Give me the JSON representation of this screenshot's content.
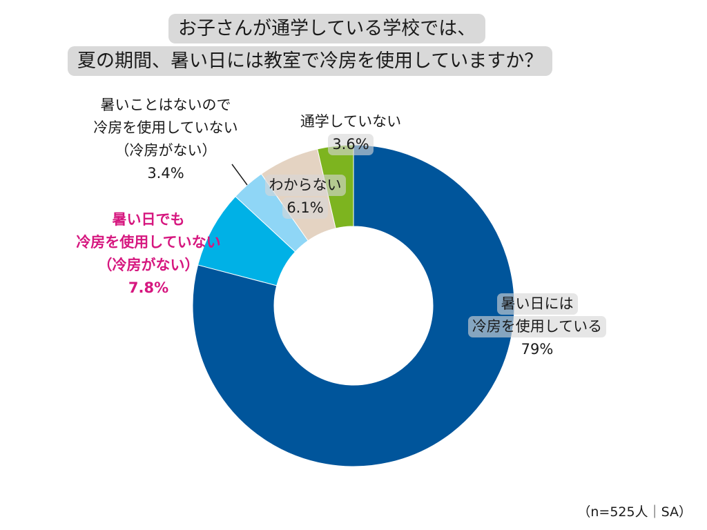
{
  "chart_data": {
    "type": "pie",
    "title": [
      "お子さんが通学している学校では、",
      "夏の期間、暑い日には教室で冷房を使用していますか？"
    ],
    "note": "（n=525人｜SA）",
    "slices": [
      {
        "label_lines": [
          "暑い日には",
          "冷房を使用している"
        ],
        "value": 79,
        "display": "79%",
        "color": "#00559b"
      },
      {
        "label_lines": [
          "暑い日でも",
          "冷房を使用していない",
          "（冷房がない）"
        ],
        "value": 7.8,
        "display": "7.8%",
        "color": "#00b1e6"
      },
      {
        "label_lines": [
          "暑いことはないので",
          "冷房を使用していない",
          "（冷房がない）"
        ],
        "value": 3.4,
        "display": "3.4%",
        "color": "#8fd6f6"
      },
      {
        "label_lines": [
          "わからない"
        ],
        "value": 6.1,
        "display": "6.1%",
        "color": "#e4d3c2"
      },
      {
        "label_lines": [
          "通学していない"
        ],
        "value": 3.6,
        "display": "3.6%",
        "color": "#7db41f"
      }
    ]
  }
}
